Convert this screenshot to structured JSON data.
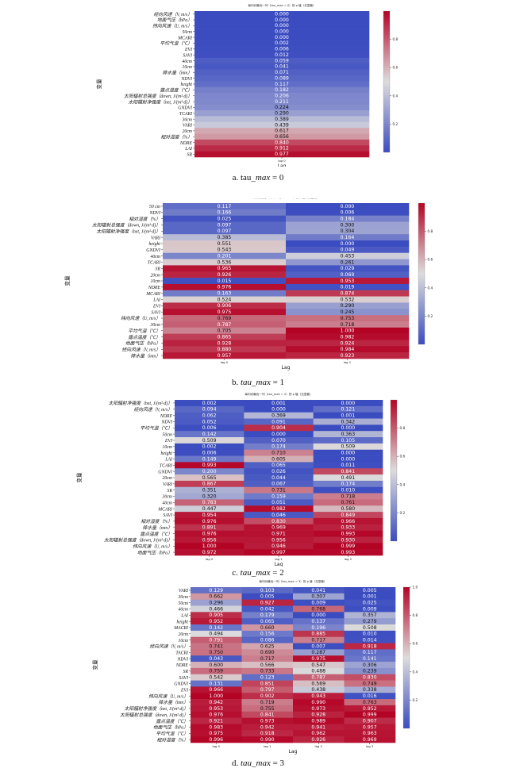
{
  "colors": {
    "low": "#3b4cc0",
    "mid": "#dddcdc",
    "high": "#b40426",
    "text_on_dark": "#ffffff",
    "text_on_light": "#111111"
  },
  "chart_data": [
    {
      "type": "heatmap",
      "panel": "a",
      "title": "每列对最优一列（tau_max = 0）的 p 值（无显著）",
      "xlabel": "Lag",
      "ylabel": "变量",
      "columns": [
        "lag 0"
      ],
      "rows": [
        "经向风速（V, m/s）",
        "地面气压（hPa）",
        "纬向风速（U, m/s）",
        "50cm",
        "MCARI",
        "平均气温（℃）",
        "EVI",
        "SAVI",
        "40cm",
        "10cm",
        "降水量（mm）",
        "NDVI",
        "height",
        "露点温度（℃）",
        "太阳辐射总强度（down, J/(m²·d)）",
        "太阳辐射净强度（net, J/(m²·d)）",
        "GNDVI",
        "TCARI",
        "30cm",
        "VARI",
        "20cm",
        "相对湿度（%）",
        "NDRE",
        "LAI",
        "SR"
      ],
      "values": [
        [
          0.0
        ],
        [
          0.0
        ],
        [
          0.0
        ],
        [
          0.0
        ],
        [
          0.0
        ],
        [
          0.002
        ],
        [
          0.006
        ],
        [
          0.012
        ],
        [
          0.059
        ],
        [
          0.041
        ],
        [
          0.071
        ],
        [
          0.089
        ],
        [
          0.117
        ],
        [
          0.182
        ],
        [
          0.206
        ],
        [
          0.211
        ],
        [
          0.224
        ],
        [
          0.29
        ],
        [
          0.389
        ],
        [
          0.439
        ],
        [
          0.617
        ],
        [
          0.656
        ],
        [
          0.84
        ],
        [
          0.912
        ],
        [
          0.977
        ]
      ],
      "colorbar": {
        "min": 0,
        "max": 1,
        "ticks": [
          0.2,
          0.4,
          0.6,
          0.8
        ]
      },
      "caption_prefix": "a. tau_",
      "caption_var": "max",
      "caption_suffix": " = 0"
    },
    {
      "type": "heatmap",
      "panel": "b",
      "title": "每列对最优一列（tau_max = 1）的 p 值（无显著）",
      "xlabel": "Lag",
      "ylabel": "变量",
      "columns": [
        "lag 0",
        "lag 1"
      ],
      "rows": [
        "50 cm",
        "NDVI",
        "相对湿度（%）",
        "太阳辐射总强度（down, J/(m²·d)）",
        "太阳辐射净强度（net, J/(m²·d)）",
        "VARI",
        "height",
        "GNDVI",
        "40cm",
        "TCARI",
        "SR",
        "20cm",
        "10cm",
        "NDRE",
        "MCARI",
        "LAI",
        "EVI",
        "SAVI",
        "纬向风速（U, m/s）",
        "30cm",
        "平均气温（℃）",
        "露点温度（℃）",
        "地面气压（hPa）",
        "经向风速（V, m/s）",
        "降水量（mm）"
      ],
      "values": [
        [
          0.117,
          0.0
        ],
        [
          0.166,
          0.006
        ],
        [
          0.025,
          0.184
        ],
        [
          0.097,
          0.3
        ],
        [
          0.097,
          0.304
        ],
        [
          0.385,
          0.164
        ],
        [
          0.551,
          0.0
        ],
        [
          0.543,
          0.049
        ],
        [
          0.201,
          0.453
        ],
        [
          0.536,
          0.261
        ],
        [
          0.965,
          0.029
        ],
        [
          0.926,
          0.069
        ],
        [
          0.015,
          0.953
        ],
        [
          0.976,
          0.019
        ],
        [
          0.163,
          0.874
        ],
        [
          0.524,
          0.532
        ],
        [
          0.906,
          0.29
        ],
        [
          0.975,
          0.245
        ],
        [
          0.769,
          0.753
        ],
        [
          0.787,
          0.718
        ],
        [
          0.705,
          1.0
        ],
        [
          0.865,
          0.982
        ],
        [
          0.928,
          0.924
        ],
        [
          0.88,
          0.984
        ],
        [
          0.957,
          0.923
        ]
      ],
      "colorbar": {
        "min": 0,
        "max": 1,
        "ticks": [
          0.2,
          0.4,
          0.6,
          0.8
        ]
      },
      "caption_prefix": "b. ",
      "caption_var": "tau_max",
      "caption_suffix": " = 1"
    },
    {
      "type": "heatmap",
      "panel": "c",
      "title": "每列对最优一列（tau_max = 2）的 p 值（无显著）",
      "xlabel": "Lag",
      "ylabel": "变量",
      "columns": [
        "lag 0",
        "lag 1",
        "lag 2"
      ],
      "rows": [
        "太阳辐射净强度（net, J/(m²·d)）",
        "经向风速（V, m/s）",
        "NDRE",
        "NDVI",
        "平均气温（℃）",
        "50cm",
        "EVI",
        "10cm",
        "height",
        "LAI",
        "TCARI",
        "GNDVI",
        "20cm",
        "VARI",
        "SR",
        "30cm",
        "40cm",
        "MCARI",
        "SAVI",
        "相对湿度（%）",
        "降水量（mm）",
        "露点温度（℃）",
        "太阳辐射总强度（down, J/(m²·d)）",
        "纬向风速（U, m/s）",
        "地面气压（hPa）"
      ],
      "values": [
        [
          0.002,
          0.001,
          0.0
        ],
        [
          0.094,
          0.0,
          0.121
        ],
        [
          0.062,
          0.369,
          0.001
        ],
        [
          0.052,
          0.091,
          0.342
        ],
        [
          0.006,
          0.904,
          0.0
        ],
        [
          0.142,
          0.0,
          0.363
        ],
        [
          0.509,
          0.07,
          0.105
        ],
        [
          0.002,
          0.174,
          0.509
        ],
        [
          0.006,
          0.71,
          0.0
        ],
        [
          0.149,
          0.605,
          0.0
        ],
        [
          0.993,
          0.065,
          0.011
        ],
        [
          0.2,
          0.026,
          0.841
        ],
        [
          0.565,
          0.044,
          0.491
        ],
        [
          0.867,
          0.067,
          0.174
        ],
        [
          0.351,
          0.731,
          0.01
        ],
        [
          0.32,
          0.159,
          0.718
        ],
        [
          0.783,
          0.051,
          0.761
        ],
        [
          0.447,
          0.982,
          0.58
        ],
        [
          0.954,
          0.046,
          0.849
        ],
        [
          0.976,
          0.83,
          0.966
        ],
        [
          0.891,
          0.969,
          0.933
        ],
        [
          0.976,
          0.971,
          0.993
        ],
        [
          0.956,
          0.956,
          0.93
        ],
        [
          1.0,
          0.946,
          0.999
        ],
        [
          0.972,
          0.997,
          0.993
        ]
      ],
      "colorbar": {
        "min": 0,
        "max": 1,
        "ticks": [
          0.2,
          0.4,
          0.6,
          0.8
        ]
      },
      "caption_prefix": "c. ",
      "caption_var": "tau_max",
      "caption_suffix": " = 2"
    },
    {
      "type": "heatmap",
      "panel": "d",
      "title": "每列对最优一列（tau_max = 3）的 p 值（无显著）",
      "xlabel": "Lag",
      "ylabel": "变量",
      "columns": [
        "lag 0",
        "lag 1",
        "lag 2",
        "lag 3"
      ],
      "rows": [
        "VARI",
        "30cm",
        "50cm",
        "40cm",
        "LAI",
        "height",
        "MACRI",
        "20cm",
        "10cm",
        "经向风速（V, m/s）",
        "TACRI",
        "NDVI",
        "NDRE",
        "SR",
        "SAVI",
        "GNDVI",
        "EVI",
        "纬向风速（U, m/s）",
        "降水量（mm）",
        "太阳辐射净强度（net, J/(m²·d)）",
        "太阳辐射总强度（down, J/(m²·d)）",
        "露点温度（℃）",
        "地面气压（hPa）",
        "平均气温（℃）",
        "相对湿度（%）"
      ],
      "values": [
        [
          0.129,
          0.103,
          0.041,
          0.005
        ],
        [
          0.662,
          0.005,
          0.307,
          0.001
        ],
        [
          0.296,
          0.927,
          0.009,
          0.025
        ],
        [
          0.466,
          0.042,
          0.768,
          0.009
        ],
        [
          0.905,
          0.179,
          0.0,
          0.357
        ],
        [
          0.952,
          0.065,
          0.137,
          0.279
        ],
        [
          0.142,
          0.66,
          0.196,
          0.508
        ],
        [
          0.494,
          0.156,
          0.885,
          0.01
        ],
        [
          0.791,
          0.086,
          0.717,
          0.014
        ],
        [
          0.741,
          0.625,
          0.007,
          0.918
        ],
        [
          0.75,
          0.69,
          0.287,
          0.117
        ],
        [
          0.043,
          0.717,
          0.975,
          0.141
        ],
        [
          0.6,
          0.566,
          0.547,
          0.306
        ],
        [
          0.759,
          0.733,
          0.488,
          0.239
        ],
        [
          0.542,
          0.123,
          0.787,
          0.83
        ],
        [
          0.131,
          0.851,
          0.569,
          0.749
        ],
        [
          0.966,
          0.797,
          0.438,
          0.338
        ],
        [
          1.0,
          0.902,
          0.943,
          0.016
        ],
        [
          0.942,
          0.719,
          0.99,
          0.763
        ],
        [
          0.953,
          0.755,
          0.973,
          0.952
        ],
        [
          0.976,
          0.841,
          0.928,
          0.999
        ],
        [
          0.921,
          0.973,
          0.989,
          0.907
        ],
        [
          0.983,
          0.942,
          0.941,
          0.957
        ],
        [
          0.975,
          0.918,
          0.962,
          0.963
        ],
        [
          0.996,
          0.99,
          0.926,
          0.969
        ]
      ],
      "colorbar": {
        "min": 0,
        "max": 1,
        "ticks": [
          0.2,
          0.4,
          0.6,
          0.8,
          1.0
        ]
      },
      "caption_prefix": "d. ",
      "caption_var": "tau_max",
      "caption_suffix": " = 3"
    }
  ]
}
